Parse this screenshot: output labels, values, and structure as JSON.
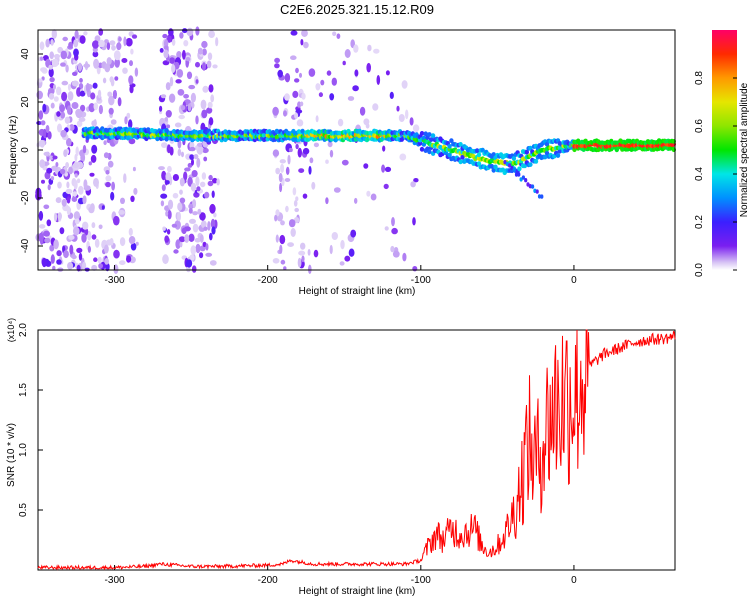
{
  "title": "C2E6.2025.321.15.12.R09",
  "chart_data": [
    {
      "type": "heatmap",
      "xlabel": "Height of straight line (km)",
      "ylabel": "Frequency (Hz)",
      "xlim": [
        -350,
        66
      ],
      "ylim": [
        -50,
        50
      ],
      "xticks": [
        -300,
        -200,
        -100,
        0
      ],
      "yticks": [
        -40,
        -20,
        0,
        20,
        40
      ],
      "colorbar": {
        "label": "Normalized spectral amplitude",
        "range": [
          0.0,
          1.0
        ],
        "ticks": [
          0.0,
          0.2,
          0.4,
          0.6,
          0.8
        ],
        "colormap": "rainbow (purple → blue → cyan → green → yellow → orange → red)"
      },
      "ridge": {
        "description": "Dominant spectral ridge (frequency vs height)",
        "x": [
          -320,
          -300,
          -250,
          -200,
          -150,
          -110,
          -95,
          -80,
          -65,
          -50,
          -40,
          -30,
          -20,
          -10,
          0,
          20,
          40,
          66
        ],
        "y": [
          7,
          7,
          6,
          6,
          6,
          6,
          3,
          0,
          -3,
          -5,
          -6,
          -3,
          0,
          1,
          2,
          2,
          2,
          2
        ]
      }
    },
    {
      "type": "line",
      "xlabel": "Height of straight line (km)",
      "ylabel": "SNR (10 * v/v)",
      "scale_label": "(x10⁴)",
      "xlim": [
        -350,
        66
      ],
      "ylim": [
        0,
        2.0
      ],
      "xticks": [
        -300,
        -200,
        -100,
        0
      ],
      "yticks": [
        0.5,
        1.0,
        1.5,
        2.0
      ],
      "ytick_labels": [
        "0.5",
        "1.0",
        "1.5",
        "2.0"
      ],
      "color": "#ff0000",
      "series": [
        {
          "x": [
            -350,
            -300,
            -280,
            -270,
            -250,
            -230,
            -200,
            -190,
            -185,
            -170,
            -150,
            -130,
            -110,
            -100,
            -95,
            -90,
            -85,
            -80,
            -75,
            -70,
            -65,
            -60,
            -55,
            -50,
            -45,
            -40,
            -35,
            -32,
            -30,
            -28,
            -25,
            -22,
            -20,
            -15,
            -10,
            -5,
            0,
            5,
            10,
            20,
            30,
            40,
            50,
            60,
            66
          ],
          "y": [
            0.02,
            0.02,
            0.03,
            0.05,
            0.03,
            0.03,
            0.04,
            0.05,
            0.08,
            0.05,
            0.05,
            0.05,
            0.05,
            0.08,
            0.2,
            0.3,
            0.25,
            0.35,
            0.3,
            0.32,
            0.35,
            0.2,
            0.15,
            0.2,
            0.3,
            0.45,
            0.7,
            0.9,
            1.1,
            1.0,
            0.9,
            1.0,
            1.1,
            1.3,
            1.4,
            1.45,
            1.5,
            1.6,
            1.7,
            1.8,
            1.85,
            1.9,
            1.92,
            1.93,
            1.95
          ]
        }
      ]
    }
  ]
}
